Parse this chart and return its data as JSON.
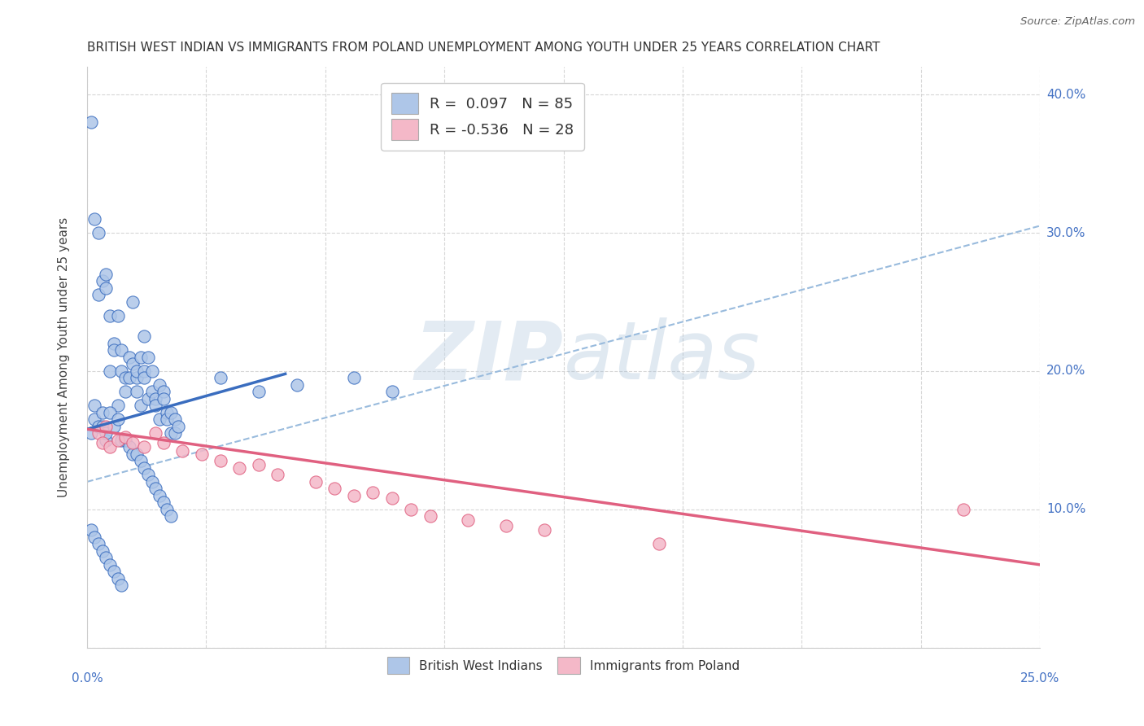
{
  "title": "BRITISH WEST INDIAN VS IMMIGRANTS FROM POLAND UNEMPLOYMENT AMONG YOUTH UNDER 25 YEARS CORRELATION CHART",
  "source": "Source: ZipAtlas.com",
  "ylabel": "Unemployment Among Youth under 25 years",
  "xlim": [
    0.0,
    0.25
  ],
  "ylim": [
    0.0,
    0.42
  ],
  "legend_blue_label": "R =  0.097   N = 85",
  "legend_pink_label": "R = -0.536   N = 28",
  "legend_bottom_blue": "British West Indians",
  "legend_bottom_pink": "Immigrants from Poland",
  "blue_color": "#aec6e8",
  "blue_line_color": "#3a6dbf",
  "pink_color": "#f4b8c8",
  "pink_line_color": "#e06080",
  "dash_line_color": "#99bbdd",
  "watermark_zip": "ZIP",
  "watermark_atlas": "atlas",
  "title_fontsize": 11,
  "blue_scatter_x": [
    0.003,
    0.004,
    0.005,
    0.005,
    0.005,
    0.006,
    0.006,
    0.007,
    0.007,
    0.008,
    0.008,
    0.009,
    0.009,
    0.01,
    0.01,
    0.011,
    0.011,
    0.012,
    0.012,
    0.013,
    0.013,
    0.013,
    0.014,
    0.014,
    0.015,
    0.015,
    0.015,
    0.016,
    0.016,
    0.017,
    0.017,
    0.018,
    0.018,
    0.019,
    0.019,
    0.02,
    0.02,
    0.021,
    0.021,
    0.022,
    0.022,
    0.023,
    0.023,
    0.024,
    0.001,
    0.002,
    0.002,
    0.003,
    0.004,
    0.004,
    0.005,
    0.006,
    0.007,
    0.008,
    0.009,
    0.01,
    0.011,
    0.012,
    0.013,
    0.014,
    0.015,
    0.016,
    0.017,
    0.018,
    0.019,
    0.02,
    0.021,
    0.022,
    0.001,
    0.002,
    0.003,
    0.004,
    0.005,
    0.006,
    0.007,
    0.008,
    0.009,
    0.001,
    0.002,
    0.003,
    0.07,
    0.08,
    0.035,
    0.045,
    0.055
  ],
  "blue_scatter_y": [
    0.255,
    0.265,
    0.26,
    0.27,
    0.15,
    0.2,
    0.24,
    0.22,
    0.215,
    0.24,
    0.175,
    0.215,
    0.2,
    0.195,
    0.185,
    0.21,
    0.195,
    0.205,
    0.25,
    0.195,
    0.2,
    0.185,
    0.21,
    0.175,
    0.225,
    0.2,
    0.195,
    0.21,
    0.18,
    0.185,
    0.2,
    0.18,
    0.175,
    0.19,
    0.165,
    0.185,
    0.18,
    0.17,
    0.165,
    0.17,
    0.155,
    0.165,
    0.155,
    0.16,
    0.155,
    0.175,
    0.165,
    0.16,
    0.17,
    0.16,
    0.155,
    0.17,
    0.16,
    0.165,
    0.15,
    0.15,
    0.145,
    0.14,
    0.14,
    0.135,
    0.13,
    0.125,
    0.12,
    0.115,
    0.11,
    0.105,
    0.1,
    0.095,
    0.085,
    0.08,
    0.075,
    0.07,
    0.065,
    0.06,
    0.055,
    0.05,
    0.045,
    0.38,
    0.31,
    0.3,
    0.195,
    0.185,
    0.195,
    0.185,
    0.19
  ],
  "pink_scatter_x": [
    0.003,
    0.004,
    0.005,
    0.006,
    0.008,
    0.01,
    0.012,
    0.015,
    0.018,
    0.02,
    0.025,
    0.03,
    0.035,
    0.04,
    0.045,
    0.05,
    0.06,
    0.065,
    0.07,
    0.075,
    0.08,
    0.085,
    0.09,
    0.1,
    0.11,
    0.12,
    0.15,
    0.23
  ],
  "pink_scatter_y": [
    0.155,
    0.148,
    0.16,
    0.145,
    0.15,
    0.152,
    0.148,
    0.145,
    0.155,
    0.148,
    0.142,
    0.14,
    0.135,
    0.13,
    0.132,
    0.125,
    0.12,
    0.115,
    0.11,
    0.112,
    0.108,
    0.1,
    0.095,
    0.092,
    0.088,
    0.085,
    0.075,
    0.1
  ],
  "blue_line_x0": 0.0,
  "blue_line_x1": 0.052,
  "blue_line_y0": 0.158,
  "blue_line_y1": 0.198,
  "dash_line_x0": 0.0,
  "dash_line_x1": 0.25,
  "dash_line_y0": 0.12,
  "dash_line_y1": 0.305,
  "pink_line_x0": 0.0,
  "pink_line_x1": 0.25,
  "pink_line_y0": 0.158,
  "pink_line_y1": 0.06,
  "yticks": [
    0.0,
    0.1,
    0.2,
    0.3,
    0.4
  ],
  "ytick_right_labels": [
    "",
    "10.0%",
    "20.0%",
    "30.0%",
    "40.0%"
  ],
  "xtick_left_label": "0.0%",
  "xtick_right_label": "25.0%"
}
